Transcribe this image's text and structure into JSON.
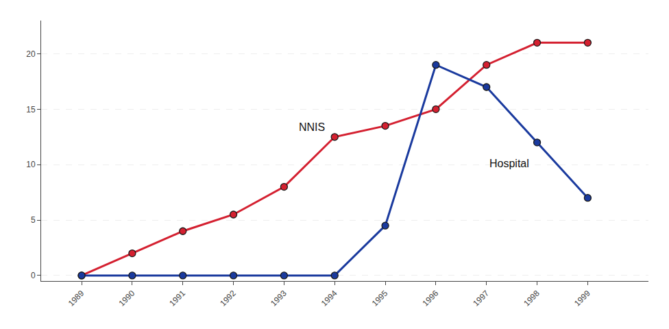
{
  "chart_data": {
    "type": "line",
    "x": [
      1989,
      1990,
      1991,
      1992,
      1993,
      1994,
      1995,
      1996,
      1997,
      1998,
      1999
    ],
    "series": [
      {
        "name": "NNIS",
        "color": "#d42030",
        "values": [
          0,
          2,
          4,
          5.5,
          8,
          12.5,
          13.5,
          15,
          19,
          21,
          21
        ]
      },
      {
        "name": "Hospital",
        "color": "#1a3a9e",
        "values": [
          0,
          0,
          0,
          0,
          0,
          0,
          4.5,
          19,
          17,
          12,
          7
        ]
      }
    ],
    "marker": "circle",
    "xlim": [
      1988.2,
      2000.2
    ],
    "xticks": [
      1989,
      1990,
      1991,
      1992,
      1993,
      1994,
      1995,
      1996,
      1997,
      1998,
      1999
    ],
    "ylim": [
      -0.5,
      23
    ],
    "yticks": [
      0,
      5,
      10,
      15,
      20
    ],
    "grid": true
  }
}
